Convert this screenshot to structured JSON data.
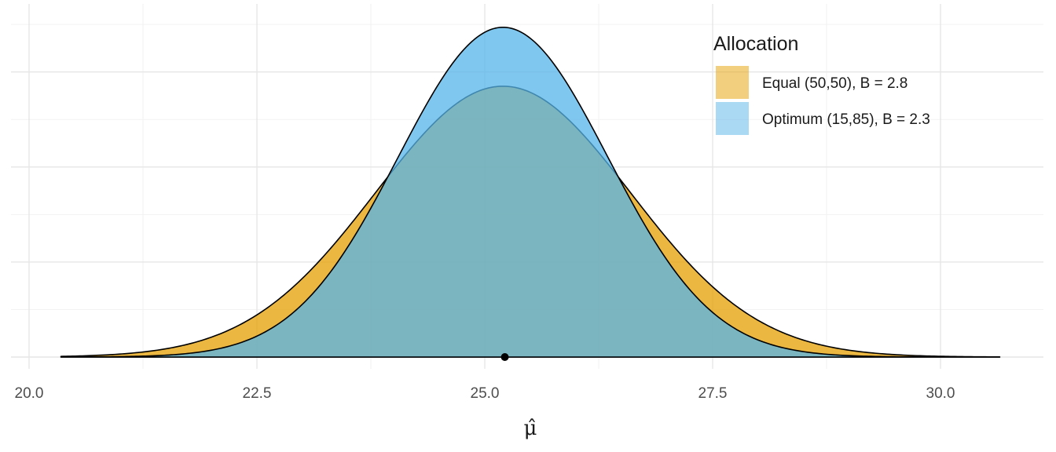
{
  "chart_data": {
    "type": "area",
    "title": "",
    "xlabel": "μ̂",
    "ylabel": "",
    "xlim": [
      20.35,
      30.65
    ],
    "x_ticks": [
      20.0,
      22.5,
      25.0,
      27.5,
      30.0
    ],
    "x_tick_labels": [
      "20.0",
      "22.5",
      "25.0",
      "27.5",
      "30.0"
    ],
    "y_tick_labels_shown": false,
    "grid": true,
    "point": {
      "x": 25.22,
      "y": 0
    },
    "legend": {
      "title": "Allocation",
      "position": "top-right",
      "entries": [
        {
          "label": "Equal (50,50), B = 2.8",
          "color": "#E69F00"
        },
        {
          "label": "Optimum (15,85), B = 2.3",
          "color": "#56B4E9"
        }
      ]
    },
    "series": [
      {
        "name": "Equal (50,50), B = 2.8",
        "distribution": "normal",
        "mean": 25.2,
        "sd": 1.4,
        "peak_density": 0.285,
        "fill": "#E69F00",
        "fill_opacity": 0.75
      },
      {
        "name": "Optimum (15,85), B = 2.3",
        "distribution": "normal",
        "mean": 25.2,
        "sd": 1.15,
        "peak_density": 0.347,
        "fill": "#56B4E9",
        "fill_opacity": 0.75
      }
    ]
  }
}
